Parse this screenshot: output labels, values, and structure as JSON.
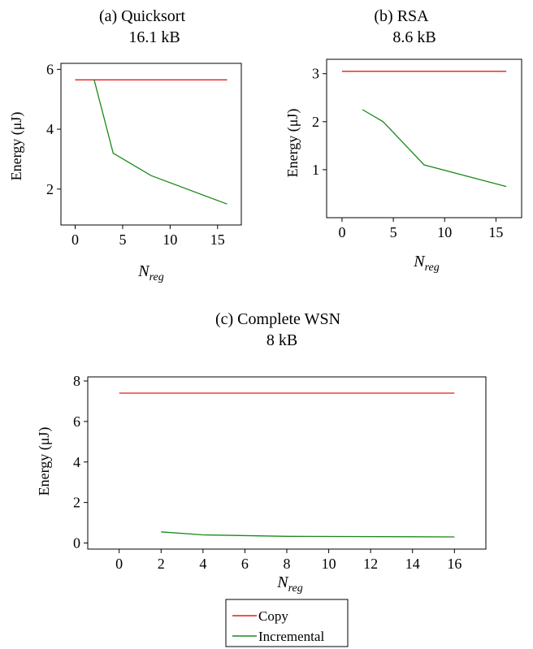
{
  "colors": {
    "copy": "#e41a1c",
    "incremental": "#1a8a1a",
    "axis": "#000000"
  },
  "legend": {
    "entries": [
      {
        "name": "Copy",
        "color": "#e41a1c"
      },
      {
        "name": "Incremental",
        "color": "#1a8a1a"
      }
    ]
  },
  "chart_data": [
    {
      "id": "a",
      "type": "line",
      "title": "(a) Quicksort",
      "subtitle": "16.1 kB",
      "xlabel_base": "N",
      "xlabel_sub": "reg",
      "ylabel": "Energy (μJ)",
      "xlim": [
        -1.5,
        17.5
      ],
      "ylim": [
        0.8,
        6.2
      ],
      "xticks": [
        0,
        5,
        10,
        15
      ],
      "yticks": [
        2,
        4,
        6
      ],
      "series": [
        {
          "name": "Copy",
          "color": "#e41a1c",
          "x": [
            0,
            16
          ],
          "y": [
            5.65,
            5.65
          ]
        },
        {
          "name": "Incremental",
          "color": "#1a8a1a",
          "x": [
            2,
            4,
            8,
            16
          ],
          "y": [
            5.65,
            3.2,
            2.45,
            1.5
          ]
        }
      ]
    },
    {
      "id": "b",
      "type": "line",
      "title": "(b) RSA",
      "subtitle": "8.6 kB",
      "xlabel_base": "N",
      "xlabel_sub": "reg",
      "ylabel": "Energy (μJ)",
      "xlim": [
        -1.5,
        17.5
      ],
      "ylim": [
        0.0,
        3.3
      ],
      "xticks": [
        0,
        5,
        10,
        15
      ],
      "yticks": [
        1,
        2,
        3
      ],
      "series": [
        {
          "name": "Copy",
          "color": "#e41a1c",
          "x": [
            0,
            16
          ],
          "y": [
            3.05,
            3.05
          ]
        },
        {
          "name": "Incremental",
          "color": "#1a8a1a",
          "x": [
            2,
            4,
            8,
            16
          ],
          "y": [
            2.25,
            2.0,
            1.1,
            0.65
          ]
        }
      ]
    },
    {
      "id": "c",
      "type": "line",
      "title": "(c) Complete WSN",
      "subtitle": "8 kB",
      "xlabel_base": "N",
      "xlabel_sub": "reg",
      "ylabel": "Energy (μJ)",
      "xlim": [
        -1.5,
        17.5
      ],
      "ylim": [
        -0.3,
        8.2
      ],
      "xticks": [
        0,
        2,
        4,
        6,
        8,
        10,
        12,
        14,
        16
      ],
      "yticks": [
        0,
        2,
        4,
        6,
        8
      ],
      "series": [
        {
          "name": "Copy",
          "color": "#e41a1c",
          "x": [
            0,
            16
          ],
          "y": [
            7.4,
            7.4
          ]
        },
        {
          "name": "Incremental",
          "color": "#1a8a1a",
          "x": [
            2,
            4,
            8,
            16
          ],
          "y": [
            0.55,
            0.4,
            0.33,
            0.3
          ]
        }
      ]
    }
  ]
}
